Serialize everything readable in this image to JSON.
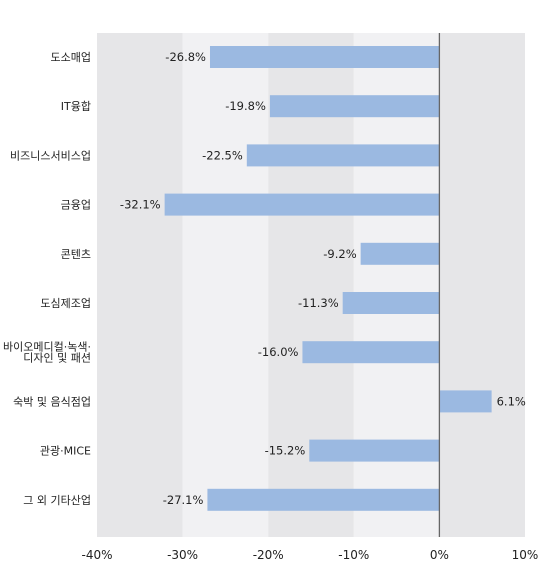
{
  "chart_data": {
    "type": "bar",
    "orientation": "horizontal",
    "title": "",
    "xlabel": "",
    "ylabel": "",
    "categories": [
      [
        "도소매업"
      ],
      [
        "IT융합"
      ],
      [
        "비즈니스서비스업"
      ],
      [
        "금융업"
      ],
      [
        "콘텐츠"
      ],
      [
        "도심제조업"
      ],
      [
        "바이오메디컬·녹색·",
        "디자인 및 패션"
      ],
      [
        "숙박 및 음식점업"
      ],
      [
        "관광·MICE"
      ],
      [
        "그 외 기타산업"
      ]
    ],
    "values": [
      -26.8,
      -19.8,
      -22.5,
      -32.1,
      -9.2,
      -11.3,
      -16.0,
      6.1,
      -15.2,
      -27.1
    ],
    "value_labels": [
      "-26.8%",
      "-19.8%",
      "-22.5%",
      "-32.1%",
      "-9.2%",
      "-11.3%",
      "-16.0%",
      "6.1%",
      "-15.2%",
      "-27.1%"
    ],
    "xlim": [
      -40,
      10
    ],
    "xticks": [
      -40,
      -30,
      -20,
      -10,
      0,
      10
    ],
    "xtick_labels": [
      "-40%",
      "-30%",
      "-20%",
      "-10%",
      "0%",
      "10%"
    ],
    "grid": "alternating vertical bands",
    "colors": {
      "bar": "#9bb9e1",
      "band_dark": "#e6e6e8",
      "band_light": "#f1f1f3",
      "zero_line": "#666666",
      "text": "#222222"
    }
  }
}
